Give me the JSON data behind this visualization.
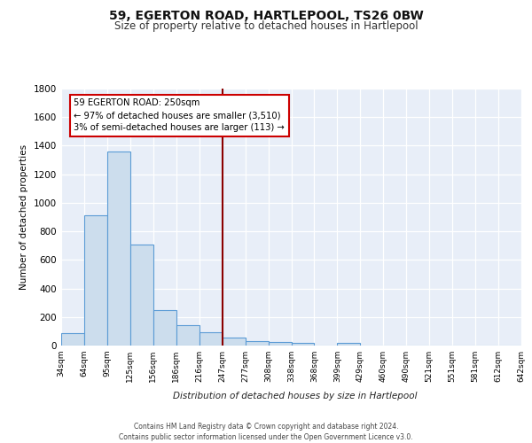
{
  "title": "59, EGERTON ROAD, HARTLEPOOL, TS26 0BW",
  "subtitle": "Size of property relative to detached houses in Hartlepool",
  "xlabel": "Distribution of detached houses by size in Hartlepool",
  "ylabel": "Number of detached properties",
  "bins": [
    "34sqm",
    "64sqm",
    "95sqm",
    "125sqm",
    "156sqm",
    "186sqm",
    "216sqm",
    "247sqm",
    "277sqm",
    "308sqm",
    "338sqm",
    "368sqm",
    "399sqm",
    "429sqm",
    "460sqm",
    "490sqm",
    "521sqm",
    "551sqm",
    "581sqm",
    "612sqm",
    "642sqm"
  ],
  "values": [
    90,
    910,
    1360,
    710,
    250,
    145,
    95,
    55,
    30,
    25,
    20,
    0,
    20,
    0,
    0,
    0,
    0,
    0,
    0,
    0
  ],
  "bar_color": "#ccdded",
  "bar_edge_color": "#5b9bd5",
  "vline_x_index": 7,
  "vline_color": "#8b0000",
  "annotation_text": "59 EGERTON ROAD: 250sqm\n← 97% of detached houses are smaller (3,510)\n3% of semi-detached houses are larger (113) →",
  "annotation_box_facecolor": "#ffffff",
  "annotation_box_edgecolor": "#cc0000",
  "ylim": [
    0,
    1800
  ],
  "yticks": [
    0,
    200,
    400,
    600,
    800,
    1000,
    1200,
    1400,
    1600,
    1800
  ],
  "bg_color": "#e8eef8",
  "grid_color": "#ffffff",
  "footer_line1": "Contains HM Land Registry data © Crown copyright and database right 2024.",
  "footer_line2": "Contains public sector information licensed under the Open Government Licence v3.0."
}
